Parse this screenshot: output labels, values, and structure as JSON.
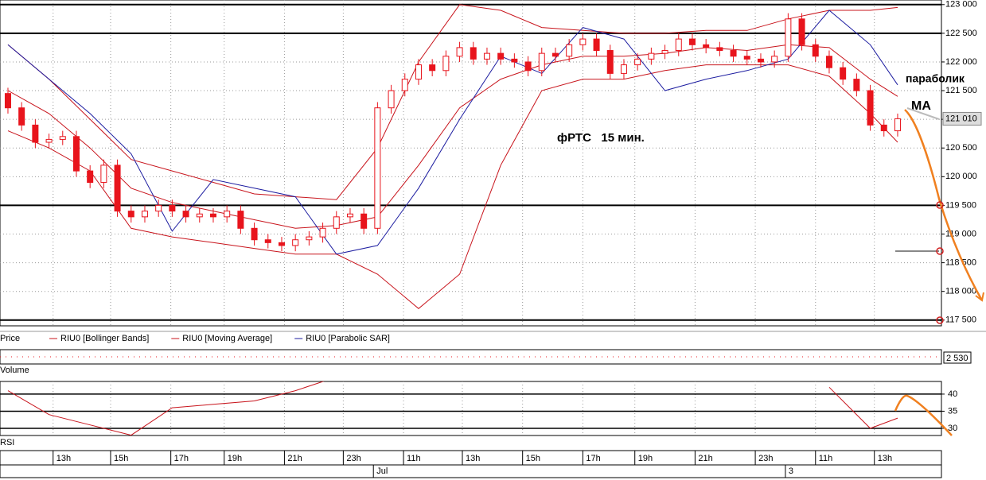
{
  "chart_data": {
    "type": "candlestick",
    "title": "фРТС   15 мин.",
    "annotations": [
      "параболик",
      "MA"
    ],
    "price_label": "Price",
    "volume_label": "Volume",
    "volume_value_label": "2 530",
    "rsi_label": "RSI",
    "last_price": 121010,
    "last_price_label": "121 010",
    "xlim": [
      -0.58,
      68.2
    ],
    "xticks": [
      {
        "value": 3.3,
        "label": "13h"
      },
      {
        "value": 7.5,
        "label": "15h"
      },
      {
        "value": 11.9,
        "label": "17h"
      },
      {
        "value": 15.8,
        "label": "19h"
      },
      {
        "value": 20.2,
        "label": "21h"
      },
      {
        "value": 24.5,
        "label": "23h"
      },
      {
        "value": 28.9,
        "label": "11h"
      },
      {
        "value": 33.2,
        "label": "13h"
      },
      {
        "value": 37.6,
        "label": "15h"
      },
      {
        "value": 42,
        "label": "17h"
      },
      {
        "value": 45.8,
        "label": "19h"
      },
      {
        "value": 50.2,
        "label": "21h"
      },
      {
        "value": 54.6,
        "label": "23h"
      },
      {
        "value": 59,
        "label": "11h"
      },
      {
        "value": 63.3,
        "label": "13h"
      }
    ],
    "date_ticks": [
      {
        "value": 26.7,
        "label": "Jul"
      },
      {
        "value": 56.8,
        "label": "3"
      }
    ],
    "ylim": [
      117400,
      123080
    ],
    "yticks": [
      {
        "value": 117500,
        "label": "117 500"
      },
      {
        "value": 118000,
        "label": "118 000"
      },
      {
        "value": 118500,
        "label": "118 500"
      },
      {
        "value": 119000,
        "label": "119 000"
      },
      {
        "value": 119500,
        "label": "119 500"
      },
      {
        "value": 120000,
        "label": "120 000"
      },
      {
        "value": 120500,
        "label": "120 500"
      },
      {
        "value": 121000,
        "label": "121 000"
      },
      {
        "value": 121500,
        "label": "121 500"
      },
      {
        "value": 122000,
        "label": "122 000"
      },
      {
        "value": 122500,
        "label": "122 500"
      },
      {
        "value": 123000,
        "label": "123 000"
      }
    ],
    "levels": [
      123000,
      122500,
      119500,
      117500
    ],
    "candle_color": "#e8141c",
    "open": [
      121450,
      121200,
      120900,
      120600,
      120650,
      120700,
      120100,
      119900,
      120200,
      119400,
      119300,
      119400,
      119500,
      119400,
      119300,
      119350,
      119300,
      119400,
      119100,
      118900,
      118850,
      118800,
      118900,
      118950,
      119100,
      119300,
      119350,
      119100,
      121200,
      121500,
      121700,
      121950,
      121850,
      122100,
      122250,
      122050,
      122150,
      122050,
      122000,
      121850,
      122150,
      122100,
      122300,
      122400,
      122200,
      121800,
      121950,
      122050,
      122150,
      122200,
      122400,
      122300,
      122250,
      122200,
      122100,
      122050,
      122000,
      122100,
      122750,
      122300,
      122100,
      121900,
      121700,
      121500,
      120900,
      120800
    ],
    "high": [
      121550,
      121300,
      121000,
      120750,
      120800,
      120800,
      120200,
      120300,
      120300,
      119500,
      119500,
      119600,
      119600,
      119500,
      119450,
      119450,
      119500,
      119500,
      119200,
      119000,
      118950,
      119000,
      119050,
      119200,
      119400,
      119450,
      119450,
      121300,
      121600,
      121800,
      122050,
      122050,
      122200,
      122350,
      122350,
      122250,
      122250,
      122150,
      122100,
      122250,
      122250,
      122400,
      122500,
      122500,
      122300,
      122050,
      122150,
      122250,
      122300,
      122500,
      122500,
      122400,
      122350,
      122300,
      122200,
      122150,
      122200,
      122850,
      122850,
      122400,
      122200,
      122000,
      121800,
      121600,
      121000,
      121100
    ],
    "low": [
      121100,
      120800,
      120500,
      120500,
      120550,
      120000,
      119800,
      119800,
      119300,
      119200,
      119200,
      119300,
      119300,
      119200,
      119200,
      119200,
      119200,
      119000,
      118800,
      118750,
      118700,
      118700,
      118800,
      118850,
      119000,
      119200,
      119000,
      119000,
      121100,
      121400,
      121600,
      121750,
      121750,
      122000,
      121950,
      121950,
      121950,
      121900,
      121750,
      121750,
      122000,
      122000,
      122200,
      122100,
      121700,
      121700,
      121850,
      121950,
      122050,
      122100,
      122200,
      122150,
      122100,
      122000,
      121950,
      121900,
      121900,
      122000,
      122200,
      122000,
      121800,
      121600,
      121400,
      120800,
      120700,
      120700
    ],
    "close": [
      121200,
      120900,
      120600,
      120650,
      120700,
      120100,
      119900,
      120200,
      119400,
      119300,
      119400,
      119500,
      119400,
      119300,
      119350,
      119300,
      119400,
      119100,
      118900,
      118850,
      118800,
      118900,
      118950,
      119100,
      119300,
      119350,
      119100,
      121200,
      121500,
      121700,
      121950,
      121850,
      122100,
      122250,
      122050,
      122150,
      122050,
      122000,
      121850,
      122150,
      122100,
      122300,
      122400,
      122200,
      121800,
      121950,
      122050,
      122150,
      122200,
      122400,
      122300,
      122250,
      122200,
      122100,
      122050,
      122000,
      122100,
      122750,
      122300,
      122100,
      121900,
      121700,
      121500,
      120900,
      120800,
      121010
    ],
    "indicator_x": [
      0,
      3,
      6,
      9,
      12,
      15,
      18,
      21,
      24,
      27,
      30,
      33,
      36,
      39,
      42,
      45,
      48,
      51,
      54,
      57,
      60,
      63,
      65
    ],
    "indicators": [
      {
        "name": "RIU0 [Bollinger Bands]",
        "color": "#c8141c",
        "values": [
          122300,
          121700,
          121000,
          120300,
          120100,
          119900,
          119700,
          119650,
          119600,
          120500,
          122000,
          123000,
          122900,
          122600,
          122550,
          122500,
          122500,
          122550,
          122550,
          122750,
          122900,
          122900,
          122950
        ]
      },
      {
        "name": "RIU0 [Bollinger Bands]",
        "color": "#c8141c",
        "values": [
          120800,
          120500,
          120100,
          119100,
          118950,
          118850,
          118750,
          118650,
          118650,
          118300,
          117700,
          118300,
          120200,
          121500,
          121700,
          121700,
          121850,
          121950,
          121950,
          121950,
          121750,
          121100,
          120600
        ]
      },
      {
        "name": "RIU0 [Moving Average]",
        "color": "#c8141c",
        "values": [
          121500,
          121100,
          120500,
          119800,
          119550,
          119400,
          119250,
          119100,
          119150,
          119300,
          120200,
          121200,
          121700,
          121950,
          122100,
          122100,
          122150,
          122250,
          122200,
          122300,
          122250,
          121700,
          121400
        ]
      },
      {
        "name": "RIU0 [Parabolic SAR]",
        "color": "#1c1ca0",
        "values": [
          122300,
          121700,
          121100,
          120400,
          119050,
          119950,
          119800,
          119650,
          118650,
          118800,
          119800,
          121000,
          122100,
          121800,
          122600,
          122400,
          121500,
          121700,
          121850,
          122050,
          122900,
          122300,
          121600
        ]
      }
    ],
    "rsi": {
      "color": "#c8141c",
      "values": [
        41,
        34,
        31,
        28,
        36,
        37,
        38,
        41,
        45,
        null,
        null,
        null,
        null,
        null,
        null,
        null,
        null,
        null,
        null,
        null,
        42,
        30,
        33
      ],
      "ylim": [
        27.9,
        43.7
      ],
      "yticks": [
        30,
        35,
        40
      ]
    }
  }
}
